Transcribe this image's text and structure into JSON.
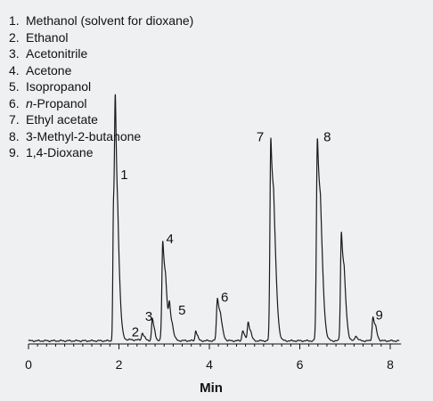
{
  "chart_data": {
    "type": "line",
    "title": "",
    "xlabel": "Min",
    "ylabel": "",
    "xlim": [
      0,
      8.2
    ],
    "ylim": [
      0,
      100
    ],
    "x_ticks": [
      "0",
      "2",
      "4",
      "6",
      "8"
    ],
    "grid": false,
    "legend_placement": "top-left",
    "line_color": "#1a1a1a",
    "baseline": 1.5,
    "peaks": [
      {
        "label": "1",
        "x": 1.92,
        "height": 79,
        "width": 0.018,
        "tail": 0.05
      },
      {
        "label": "",
        "x": 1.88,
        "height": 61,
        "width": 0.015,
        "tail": 0.03
      },
      {
        "label": "2",
        "x": 2.52,
        "height": 3.5,
        "width": 0.02,
        "tail": 0.02
      },
      {
        "label": "3",
        "x": 2.74,
        "height": 10.5,
        "width": 0.018,
        "tail": 0.025
      },
      {
        "label": "4",
        "x": 2.97,
        "height": 47.5,
        "width": 0.02,
        "tail": 0.05
      },
      {
        "label": "5",
        "x": 3.12,
        "height": 13.5,
        "width": 0.02,
        "tail": 0.04
      },
      {
        "label": "",
        "x": 3.7,
        "height": 5,
        "width": 0.016,
        "tail": 0.02
      },
      {
        "label": "6",
        "x": 4.18,
        "height": 20.5,
        "width": 0.022,
        "tail": 0.05
      },
      {
        "label": "",
        "x": 4.74,
        "height": 5,
        "width": 0.02,
        "tail": 0.02
      },
      {
        "label": "",
        "x": 4.86,
        "height": 9,
        "width": 0.02,
        "tail": 0.03
      },
      {
        "label": "7",
        "x": 5.36,
        "height": 97,
        "width": 0.02,
        "tail": 0.06
      },
      {
        "label": "8",
        "x": 6.39,
        "height": 97,
        "width": 0.022,
        "tail": 0.06
      },
      {
        "label": "",
        "x": 6.92,
        "height": 52,
        "width": 0.02,
        "tail": 0.05
      },
      {
        "label": "",
        "x": 7.24,
        "height": 2.5,
        "width": 0.02,
        "tail": 0.02
      },
      {
        "label": "9",
        "x": 7.62,
        "height": 11.5,
        "width": 0.02,
        "tail": 0.04
      }
    ],
    "legend_items": [
      {
        "num": "1.",
        "prefix": "",
        "italic": "",
        "text": "Methanol (solvent for dioxane)"
      },
      {
        "num": "2.",
        "prefix": "",
        "italic": "",
        "text": "Ethanol"
      },
      {
        "num": "3.",
        "prefix": "",
        "italic": "",
        "text": "Acetonitrile"
      },
      {
        "num": "4.",
        "prefix": "",
        "italic": "",
        "text": "Acetone"
      },
      {
        "num": "5.",
        "prefix": "",
        "italic": "",
        "text": "Isopropanol"
      },
      {
        "num": "6.",
        "prefix": "",
        "italic": "n",
        "text": "-Propanol"
      },
      {
        "num": "7.",
        "prefix": "",
        "italic": "",
        "text": "Ethyl acetate"
      },
      {
        "num": "8.",
        "prefix": "",
        "italic": "",
        "text": "3-Methyl-2-butanone"
      },
      {
        "num": "9.",
        "prefix": "",
        "italic": "",
        "text": "1,4-Dioxane"
      }
    ]
  }
}
